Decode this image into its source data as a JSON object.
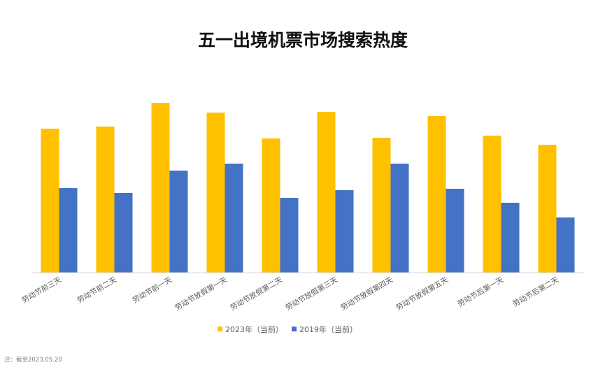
{
  "chart_data": {
    "type": "bar",
    "title": "五一出境机票市场搜索热度",
    "categories": [
      "劳动节前三天",
      "劳动节前二天",
      "劳动节前一天",
      "劳动节放假第一天",
      "劳动节放假第二天",
      "劳动节放假第三天",
      "劳动节放假第四天",
      "劳动节放假第五天",
      "劳动节后第一天",
      "劳动节后第二天"
    ],
    "series": [
      {
        "name": "2023年（当前）",
        "color": "#FFC000",
        "values": [
          206,
          209,
          243,
          229,
          192,
          230,
          193,
          224,
          196,
          183
        ]
      },
      {
        "name": "2019年（当前）",
        "color": "#4472C4",
        "values": [
          121,
          114,
          146,
          156,
          107,
          118,
          156,
          120,
          100,
          79
        ]
      }
    ],
    "xlabel": "",
    "ylabel": "",
    "ylim": [
      0,
      260
    ],
    "grid": false,
    "legend_position": "bottom"
  },
  "footnote": "注：截至2023.05.20"
}
